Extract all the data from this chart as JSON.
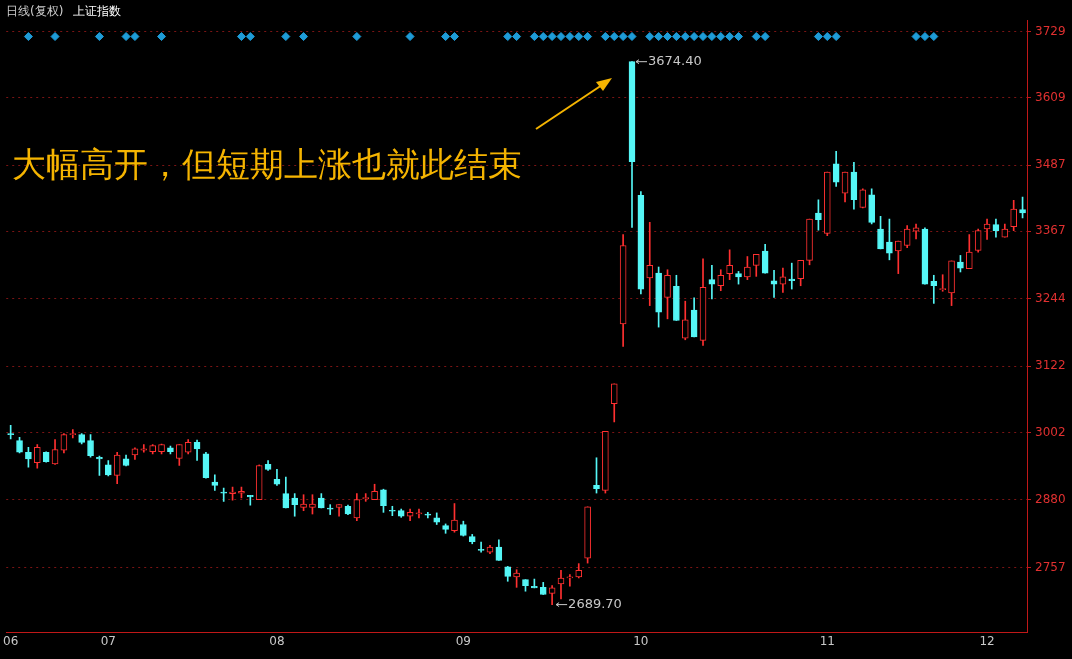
{
  "chart_data": {
    "type": "candlestick",
    "title": "日线(复权)",
    "subtitle": "上证指数",
    "categories": [
      "06",
      null,
      null,
      null,
      null,
      null,
      null,
      null,
      null,
      null,
      null,
      "07",
      null,
      null,
      null,
      null,
      null,
      null,
      null,
      null,
      null,
      null,
      null,
      null,
      null,
      null,
      null,
      null,
      null,
      null,
      "08",
      null,
      null,
      null,
      null,
      null,
      null,
      null,
      null,
      null,
      null,
      null,
      null,
      null,
      null,
      null,
      null,
      null,
      null,
      null,
      null,
      "09",
      null,
      null,
      null,
      null,
      null,
      null,
      null,
      null,
      null,
      null,
      null,
      null,
      null,
      null,
      null,
      null,
      null,
      null,
      null,
      "10",
      null,
      null,
      null,
      null,
      null,
      null,
      null,
      null,
      null,
      null,
      null,
      null,
      null,
      null,
      null,
      null,
      null,
      null,
      null,
      null,
      "11",
      null,
      null,
      null,
      null,
      null,
      null,
      null,
      null,
      null,
      null,
      null,
      null,
      null,
      null,
      null,
      null,
      null,
      "12",
      null,
      null,
      null,
      null
    ],
    "ohlc": [
      [
        3000,
        3015,
        2990,
        2998
      ],
      [
        2987,
        2993,
        2965,
        2966
      ],
      [
        2966,
        2975,
        2939,
        2954
      ],
      [
        2947,
        2980,
        2937,
        2975
      ],
      [
        2966,
        2967,
        2948,
        2949
      ],
      [
        2945,
        2989,
        2944,
        2971
      ],
      [
        2970,
        3000,
        2965,
        2998
      ],
      [
        2998,
        3007,
        2992,
        3000
      ],
      [
        2998,
        3000,
        2981,
        2984
      ],
      [
        2987,
        2998,
        2957,
        2960
      ],
      [
        2957,
        2959,
        2924,
        2954
      ],
      [
        2943,
        2951,
        2923,
        2925
      ],
      [
        2924,
        2966,
        2909,
        2961
      ],
      [
        2954,
        2961,
        2941,
        2942
      ],
      [
        2961,
        2974,
        2953,
        2972
      ],
      [
        2970,
        2980,
        2966,
        2972
      ],
      [
        2967,
        2980,
        2963,
        2978
      ],
      [
        2967,
        2981,
        2963,
        2980
      ],
      [
        2974,
        2977,
        2963,
        2967
      ],
      [
        2955,
        2980,
        2942,
        2980
      ],
      [
        2966,
        2989,
        2963,
        2984
      ],
      [
        2984,
        2988,
        2951,
        2972
      ],
      [
        2963,
        2966,
        2919,
        2920
      ],
      [
        2912,
        2925,
        2897,
        2906
      ],
      [
        2894,
        2901,
        2877,
        2892
      ],
      [
        2891,
        2903,
        2879,
        2894
      ],
      [
        2892,
        2903,
        2883,
        2895
      ],
      [
        2888,
        2888,
        2870,
        2885
      ],
      [
        2880,
        2943,
        2880,
        2942
      ],
      [
        2944,
        2951,
        2933,
        2935
      ],
      [
        2917,
        2935,
        2906,
        2908
      ],
      [
        2891,
        2921,
        2865,
        2865
      ],
      [
        2883,
        2891,
        2850,
        2871
      ],
      [
        2866,
        2889,
        2860,
        2872
      ],
      [
        2866,
        2889,
        2854,
        2872
      ],
      [
        2883,
        2891,
        2865,
        2865
      ],
      [
        2864,
        2871,
        2853,
        2863
      ],
      [
        2866,
        2871,
        2850,
        2871
      ],
      [
        2868,
        2870,
        2853,
        2854
      ],
      [
        2847,
        2891,
        2842,
        2880
      ],
      [
        2882,
        2891,
        2877,
        2883
      ],
      [
        2880,
        2908,
        2880,
        2895
      ],
      [
        2898,
        2899,
        2857,
        2869
      ],
      [
        2860,
        2868,
        2851,
        2859
      ],
      [
        2860,
        2863,
        2848,
        2850
      ],
      [
        2850,
        2863,
        2842,
        2857
      ],
      [
        2854,
        2863,
        2847,
        2856
      ],
      [
        2853,
        2857,
        2847,
        2852
      ],
      [
        2847,
        2856,
        2835,
        2839
      ],
      [
        2833,
        2836,
        2819,
        2826
      ],
      [
        2824,
        2873,
        2821,
        2843
      ],
      [
        2835,
        2841,
        2814,
        2815
      ],
      [
        2813,
        2817,
        2800,
        2804
      ],
      [
        2789,
        2803,
        2785,
        2788
      ],
      [
        2785,
        2797,
        2782,
        2794
      ],
      [
        2794,
        2807,
        2770,
        2770
      ],
      [
        2758,
        2759,
        2732,
        2741
      ],
      [
        2740,
        2753,
        2721,
        2747
      ],
      [
        2735,
        2735,
        2714,
        2724
      ],
      [
        2723,
        2736,
        2720,
        2720
      ],
      [
        2721,
        2730,
        2708,
        2708
      ],
      [
        2710,
        2724,
        2689.7,
        2720
      ],
      [
        2727,
        2752,
        2700,
        2738
      ],
      [
        2738,
        2744,
        2723,
        2740
      ],
      [
        2740,
        2764,
        2738,
        2752
      ],
      [
        2774,
        2867,
        2765,
        2867
      ],
      [
        2906,
        2956,
        2892,
        2900
      ],
      [
        2897,
        3004,
        2892,
        3004
      ],
      [
        3054,
        3090,
        3021,
        3090
      ],
      [
        3199,
        3361,
        3158,
        3341
      ],
      [
        3674.4,
        3674.4,
        3374,
        3493
      ],
      [
        3432,
        3439,
        3253,
        3262
      ],
      [
        3282,
        3383,
        3232,
        3305
      ],
      [
        3291,
        3302,
        3193,
        3220
      ],
      [
        3247,
        3297,
        3208,
        3287
      ],
      [
        3267,
        3287,
        3205,
        3205
      ],
      [
        3173,
        3240,
        3170,
        3206
      ],
      [
        3224,
        3246,
        3175,
        3175
      ],
      [
        3169,
        3317,
        3160,
        3265
      ],
      [
        3279,
        3305,
        3244,
        3271
      ],
      [
        3268,
        3297,
        3259,
        3287
      ],
      [
        3290,
        3333,
        3279,
        3305
      ],
      [
        3290,
        3294,
        3271,
        3284
      ],
      [
        3284,
        3321,
        3279,
        3302
      ],
      [
        3305,
        3325,
        3285,
        3325
      ],
      [
        3331,
        3343,
        3291,
        3291
      ],
      [
        3277,
        3296,
        3247,
        3271
      ],
      [
        3271,
        3300,
        3256,
        3284
      ],
      [
        3280,
        3309,
        3262,
        3277
      ],
      [
        3281,
        3314,
        3268,
        3314
      ],
      [
        3314,
        3389,
        3306,
        3389
      ],
      [
        3400,
        3424,
        3369,
        3388
      ],
      [
        3363,
        3474,
        3359,
        3474
      ],
      [
        3489,
        3512,
        3448,
        3456
      ],
      [
        3436,
        3474,
        3420,
        3474
      ],
      [
        3474,
        3492,
        3407,
        3424
      ],
      [
        3410,
        3444,
        3409,
        3442
      ],
      [
        3433,
        3444,
        3380,
        3383
      ],
      [
        3371,
        3394,
        3335,
        3335
      ],
      [
        3347,
        3389,
        3315,
        3327
      ],
      [
        3331,
        3349,
        3290,
        3349
      ],
      [
        3341,
        3377,
        3337,
        3371
      ],
      [
        3367,
        3380,
        3353,
        3373
      ],
      [
        3371,
        3373,
        3271,
        3271
      ],
      [
        3276,
        3287,
        3236,
        3268
      ],
      [
        3261,
        3288,
        3258,
        3262
      ],
      [
        3255,
        3313,
        3232,
        3313
      ],
      [
        3311,
        3323,
        3293,
        3300
      ],
      [
        3299,
        3361,
        3299,
        3329
      ],
      [
        3332,
        3371,
        3329,
        3368
      ],
      [
        3371,
        3389,
        3352,
        3380
      ],
      [
        3379,
        3389,
        3356,
        3368
      ],
      [
        3356,
        3380,
        3356,
        3371
      ],
      [
        3375,
        3423,
        3368,
        3407
      ],
      [
        3406,
        3429,
        3391,
        3400
      ]
    ],
    "series": [
      {
        "type": "scatter",
        "color": "#1e9bd7",
        "marker": "diamond",
        "values": [
          null,
          null,
          3720,
          null,
          null,
          3720,
          null,
          null,
          null,
          null,
          3720,
          null,
          null,
          3720,
          3720,
          null,
          null,
          3720,
          null,
          null,
          null,
          null,
          null,
          null,
          null,
          null,
          3720,
          3720,
          null,
          null,
          null,
          3720,
          null,
          3720,
          null,
          null,
          null,
          null,
          null,
          3720,
          null,
          null,
          null,
          null,
          null,
          3720,
          null,
          null,
          null,
          3720,
          3720,
          null,
          null,
          null,
          null,
          null,
          3720,
          3720,
          null,
          3720,
          3720,
          3720,
          3720,
          3720,
          3720,
          3720,
          null,
          3720,
          3720,
          3720,
          3720,
          null,
          3720,
          3720,
          3720,
          3720,
          3720,
          3720,
          3720,
          3720,
          3720,
          3720,
          3720,
          null,
          3720,
          3720,
          null,
          null,
          null,
          null,
          null,
          3720,
          3720,
          3720,
          null,
          null,
          null,
          null,
          null,
          null,
          null,
          null,
          3720,
          3720,
          3720,
          null,
          null,
          null,
          null,
          null,
          null,
          null,
          null,
          null,
          null
        ]
      }
    ],
    "ylim": [
      2640,
      3750
    ],
    "yticks": [
      2757,
      2880,
      3002,
      3122,
      3244,
      3367,
      3487,
      3609,
      3729
    ],
    "grid": "y",
    "annotations": [
      "大幅高开，但短期上涨也就此结束",
      "3674.40",
      "2689.70"
    ]
  }
}
